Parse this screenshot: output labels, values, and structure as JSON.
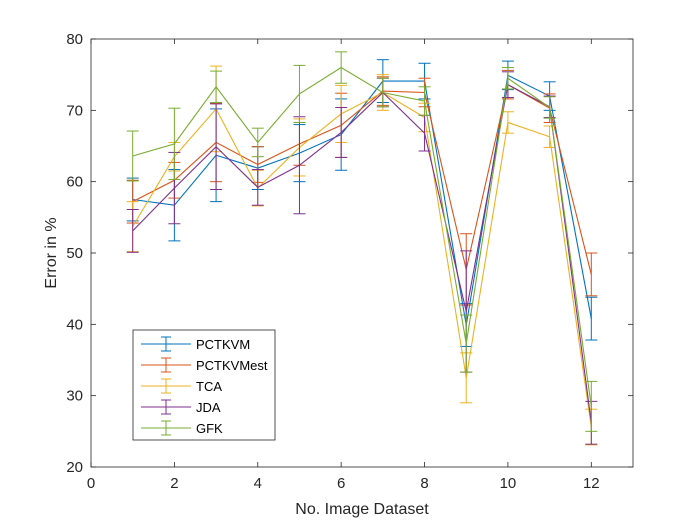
{
  "chart_data": {
    "type": "line",
    "title": "",
    "xlabel": "No. Image Dataset",
    "ylabel": "Error in %",
    "xlim": [
      0,
      13
    ],
    "ylim": [
      20,
      80
    ],
    "xticks": [
      0,
      2,
      4,
      6,
      8,
      10,
      12
    ],
    "yticks": [
      20,
      30,
      40,
      50,
      60,
      70,
      80
    ],
    "grid": false,
    "legend_position": "lower-left",
    "error_bars": true,
    "x": [
      1,
      2,
      3,
      4,
      5,
      6,
      7,
      8,
      9,
      10,
      11,
      12
    ],
    "series": [
      {
        "name": "PCTKVM",
        "color": "#0072BD",
        "values": [
          57.5,
          56.7,
          63.7,
          61.9,
          64.0,
          66.6,
          74.1,
          74.1,
          39.9,
          74.9,
          72.0,
          40.8
        ],
        "errors": [
          3.0,
          5.0,
          6.5,
          3.0,
          4.0,
          5.0,
          3.0,
          2.5,
          3.0,
          2.0,
          2.0,
          3.0
        ]
      },
      {
        "name": "PCTKVMest",
        "color": "#D95319",
        "values": [
          57.2,
          60.2,
          65.5,
          62.4,
          65.3,
          67.9,
          72.7,
          72.5,
          47.7,
          73.6,
          70.3,
          47.0
        ],
        "errors": [
          3.0,
          2.5,
          5.5,
          2.5,
          3.0,
          4.5,
          2.0,
          2.0,
          5.0,
          2.0,
          2.0,
          3.0
        ]
      },
      {
        "name": "TCA",
        "color": "#EDB120",
        "values": [
          53.7,
          63.5,
          70.2,
          59.1,
          64.8,
          69.5,
          72.5,
          69.0,
          32.5,
          68.3,
          66.3,
          25.6
        ],
        "errors": [
          3.5,
          2.0,
          6.0,
          2.5,
          4.0,
          4.0,
          2.5,
          2.0,
          3.5,
          1.5,
          1.5,
          2.5
        ]
      },
      {
        "name": "JDA",
        "color": "#7E2F8E",
        "values": [
          53.1,
          59.1,
          64.9,
          59.2,
          62.3,
          66.9,
          72.5,
          66.8,
          41.8,
          73.6,
          70.5,
          26.2
        ],
        "errors": [
          3.0,
          5.0,
          6.0,
          2.5,
          6.8,
          3.5,
          2.0,
          2.5,
          8.5,
          1.8,
          1.5,
          3.0
        ]
      },
      {
        "name": "GFK",
        "color": "#77AC30",
        "values": [
          63.6,
          65.3,
          73.3,
          65.5,
          72.3,
          76.0,
          72.5,
          71.3,
          37.3,
          74.5,
          70.4,
          28.5
        ],
        "errors": [
          3.5,
          5.0,
          2.2,
          2.0,
          4.0,
          2.2,
          2.0,
          2.0,
          4.0,
          1.5,
          1.5,
          3.5
        ]
      }
    ]
  }
}
